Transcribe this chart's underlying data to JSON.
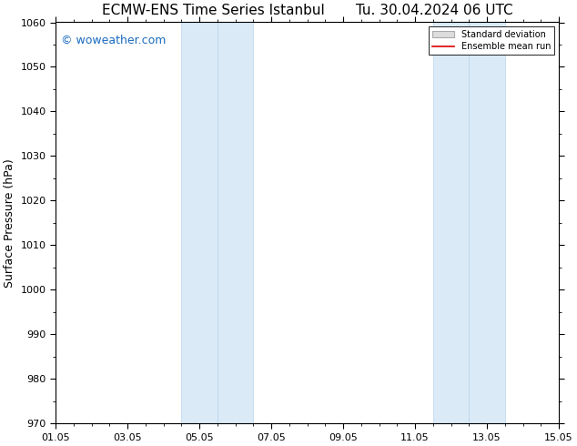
{
  "title_left": "ECMW-ENS Time Series Istanbul",
  "title_right": "Tu. 30.04.2024 06 UTC",
  "ylabel": "Surface Pressure (hPa)",
  "ylim": [
    970,
    1060
  ],
  "yticks": [
    970,
    980,
    990,
    1000,
    1010,
    1020,
    1030,
    1040,
    1050,
    1060
  ],
  "xtick_labels": [
    "01.05",
    "03.05",
    "05.05",
    "07.05",
    "09.05",
    "11.05",
    "13.05",
    "15.05"
  ],
  "xtick_positions": [
    0,
    2,
    4,
    6,
    8,
    10,
    12,
    14
  ],
  "xlim": [
    0,
    14
  ],
  "shaded_regions": [
    {
      "x_start": 3.5,
      "x_end": 4.5
    },
    {
      "x_start": 4.5,
      "x_end": 5.5
    },
    {
      "x_start": 10.5,
      "x_end": 11.5
    },
    {
      "x_start": 11.5,
      "x_end": 12.5
    }
  ],
  "shaded_color": "#daeaf7",
  "shaded_alpha": 1.0,
  "shaded_edge_color": "#b8d4ed",
  "background_color": "#ffffff",
  "watermark_text": "© woweather.com",
  "watermark_color": "#1a6bbf",
  "watermark_fontsize": 9,
  "legend_std_label": "Standard deviation",
  "legend_mean_label": "Ensemble mean run",
  "legend_std_facecolor": "#dddddd",
  "legend_std_edgecolor": "#aaaaaa",
  "legend_mean_color": "#dd0000",
  "title_fontsize": 11,
  "ylabel_fontsize": 9,
  "tick_fontsize": 8,
  "minor_tick_interval": 0.5
}
